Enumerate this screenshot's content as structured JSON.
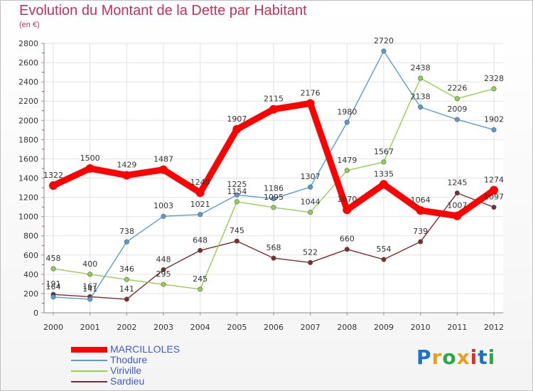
{
  "chart_data": {
    "type": "line",
    "title": "Evolution du Montant de la Dette par Habitant",
    "subtitle": "(en €)",
    "x": [
      "2000",
      "2001",
      "2002",
      "2003",
      "2004",
      "2005",
      "2006",
      "2007",
      "2008",
      "2009",
      "2010",
      "2011",
      "2012"
    ],
    "y_ticks": [
      "0",
      "200",
      "400",
      "600",
      "800",
      "1000",
      "1200",
      "1400",
      "1600",
      "1800",
      "2000",
      "2200",
      "2400",
      "2600",
      "2800"
    ],
    "ylim": [
      0,
      2800
    ],
    "grid": true,
    "legend_position": "bottom-left",
    "series": [
      {
        "name": "MARCILLOLES",
        "color": "#ff0000",
        "values": [
          1322,
          1500,
          1429,
          1487,
          1248,
          1907,
          2115,
          2176,
          1070,
          1335,
          1064,
          1007,
          1274
        ]
      },
      {
        "name": "Thodure",
        "color": "#5b9bd5",
        "values": [
          164,
          141,
          738,
          1003,
          1021,
          1225,
          1186,
          1307,
          1980,
          2720,
          2138,
          2009,
          1902
        ]
      },
      {
        "name": "Viriville",
        "color": "#92d050",
        "values": [
          458,
          400,
          346,
          295,
          245,
          1154,
          1095,
          1044,
          1479,
          1567,
          2438,
          2226,
          2328
        ]
      },
      {
        "name": "Sardieu",
        "color": "#7b2c2c",
        "values": [
          191,
          167,
          141,
          448,
          648,
          745,
          568,
          522,
          660,
          554,
          739,
          1245,
          1097
        ]
      }
    ]
  },
  "legend_text_color": "#3b5bdb",
  "logo": {
    "letters": [
      "P",
      "r",
      "o",
      "x",
      "i",
      "t",
      "i"
    ],
    "colors": [
      "#1a73c8",
      "#e8a020",
      "#2aa84a",
      "#e8a020",
      "#d93030",
      "#1a73c8",
      "#2aa84a"
    ]
  }
}
